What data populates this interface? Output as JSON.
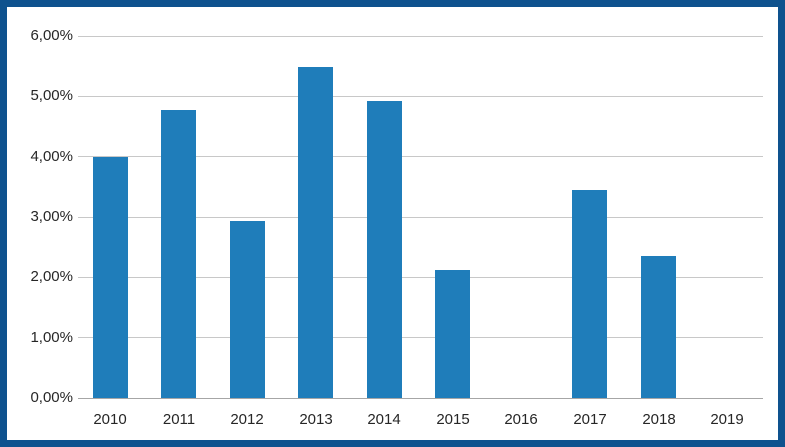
{
  "chart_data": {
    "type": "bar",
    "title": "",
    "xlabel": "",
    "ylabel": "",
    "categories": [
      "2010",
      "2011",
      "2012",
      "2013",
      "2014",
      "2015",
      "2016",
      "2017",
      "2018",
      "2019"
    ],
    "values": [
      4.0,
      4.78,
      2.93,
      5.48,
      4.93,
      2.12,
      0,
      3.44,
      2.35,
      0
    ],
    "value_unit": "%",
    "ylim": [
      0,
      6
    ],
    "y_tick_values": [
      0,
      1,
      2,
      3,
      4,
      5,
      6
    ],
    "y_tick_labels": [
      "0,00%",
      "1,00%",
      "2,00%",
      "3,00%",
      "4,00%",
      "5,00%",
      "6,00%"
    ],
    "grid": true,
    "legend": false,
    "colors": {
      "bar": "#1F7DBA",
      "frame_border": "#0E528E",
      "gridline": "#C8C8C8",
      "axis_line": "#A6A6A6",
      "label_text": "#262626",
      "background": "#FFFFFF"
    }
  }
}
